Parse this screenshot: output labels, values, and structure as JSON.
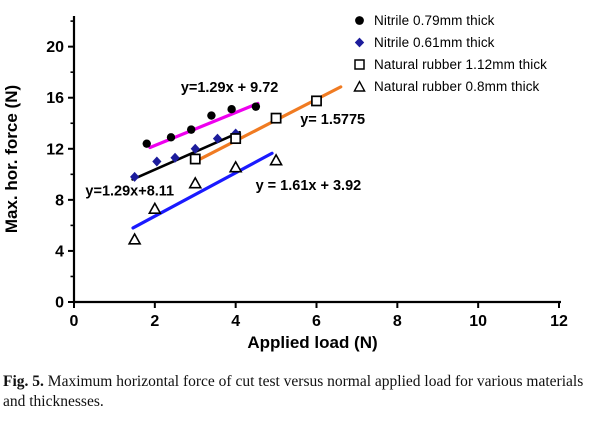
{
  "caption": {
    "label": "Fig. 5.",
    "text": "Maximum horizontal force of cut test versus normal applied load for various materials and thicknesses."
  },
  "chart_data": {
    "type": "scatter",
    "title": "",
    "xlabel": "Applied load (N)",
    "ylabel": "Max. hor. force (N)",
    "xlim": [
      0,
      12
    ],
    "ylim": [
      0,
      22.4
    ],
    "xticks": [
      0,
      2,
      4,
      6,
      8,
      10,
      12
    ],
    "yticks": [
      0,
      4,
      8,
      12,
      16,
      20
    ],
    "yminorticks": [
      2,
      6,
      10,
      14,
      18,
      22
    ],
    "grid": false,
    "legend_position": "top-right",
    "axis_color": "#000000",
    "background": "#ffffff",
    "series": [
      {
        "name": "Nitrile 0.79mm thick",
        "marker": "circle-filled",
        "marker_color": "#000000",
        "points": [
          [
            1.8,
            12.4
          ],
          [
            2.4,
            12.9
          ],
          [
            2.9,
            13.5
          ],
          [
            3.4,
            14.6
          ],
          [
            3.9,
            15.1
          ],
          [
            4.5,
            15.3
          ]
        ],
        "trendline": {
          "color": "#EE00EE",
          "x1": 1.88,
          "y1": 12.1,
          "x2": 4.55,
          "y2": 15.55,
          "width": 3.2
        },
        "equation": {
          "text": "y=1.29x + 9.72",
          "x": 3.85,
          "y": 16.85
        }
      },
      {
        "name": "Nitrile 0.61mm thick",
        "marker": "diamond-filled",
        "marker_color": "#1C1C9C",
        "points": [
          [
            1.5,
            9.8
          ],
          [
            2.05,
            11.0
          ],
          [
            2.5,
            11.3
          ],
          [
            3.0,
            12.0
          ],
          [
            3.55,
            12.8
          ],
          [
            4.0,
            13.2
          ]
        ],
        "trendline": {
          "color": "#000000",
          "x1": 1.45,
          "y1": 9.6,
          "x2": 4.1,
          "y2": 13.3,
          "width": 2.6
        },
        "equation": {
          "text": "y=1.29x+8.11",
          "x": 1.38,
          "y": 8.75
        }
      },
      {
        "name": "Natural rubber 1.12mm thick",
        "marker": "square-open",
        "marker_color": "#000000",
        "points": [
          [
            3.0,
            11.2
          ],
          [
            4.0,
            12.8
          ],
          [
            5.0,
            14.4
          ],
          [
            6.0,
            15.75
          ]
        ],
        "trendline": {
          "color": "#F07B22",
          "x1": 3.0,
          "y1": 11.0,
          "x2": 6.6,
          "y2": 16.85,
          "width": 3.2
        },
        "equation": {
          "text": "y= 1.5775",
          "x": 6.4,
          "y": 14.35
        }
      },
      {
        "name": "Natural rubber 0.8mm thick",
        "marker": "triangle-open",
        "marker_color": "#000000",
        "points": [
          [
            1.5,
            4.9
          ],
          [
            2.0,
            7.3
          ],
          [
            3.0,
            9.3
          ],
          [
            4.0,
            10.55
          ],
          [
            5.0,
            11.1
          ]
        ],
        "trendline": {
          "color": "#1A1AFF",
          "x1": 1.46,
          "y1": 5.8,
          "x2": 4.9,
          "y2": 11.65,
          "width": 3.2
        },
        "equation": {
          "text": "y = 1.61x + 3.92",
          "x": 5.8,
          "y": 9.15
        }
      }
    ]
  }
}
